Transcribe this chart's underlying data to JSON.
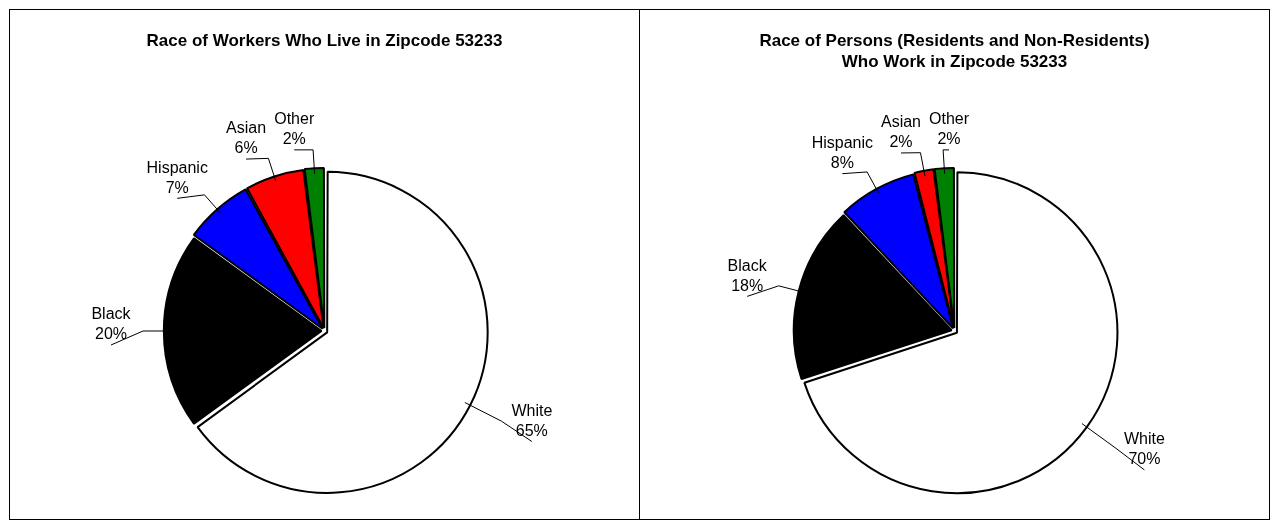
{
  "chart_data": [
    {
      "type": "pie",
      "title": "Race of Workers Who Live in Zipcode 53233",
      "categories": [
        "White",
        "Black",
        "Hispanic",
        "Asian",
        "Other"
      ],
      "values": [
        65,
        20,
        7,
        6,
        2
      ],
      "value_labels": [
        "65%",
        "20%",
        "7%",
        "6%",
        "2%"
      ],
      "colors": [
        "#ffffff",
        "#000000",
        "#0000ff",
        "#ff0000",
        "#008000"
      ]
    },
    {
      "type": "pie",
      "title": "Race of Persons (Residents and Non-Residents) Who Work in Zipcode 53233",
      "categories": [
        "White",
        "Black",
        "Hispanic",
        "Asian",
        "Other"
      ],
      "values": [
        70,
        18,
        8,
        2,
        2
      ],
      "value_labels": [
        "70%",
        "18%",
        "8%",
        "2%",
        "2%"
      ],
      "colors": [
        "#ffffff",
        "#000000",
        "#0000ff",
        "#ff0000",
        "#008000"
      ]
    }
  ]
}
